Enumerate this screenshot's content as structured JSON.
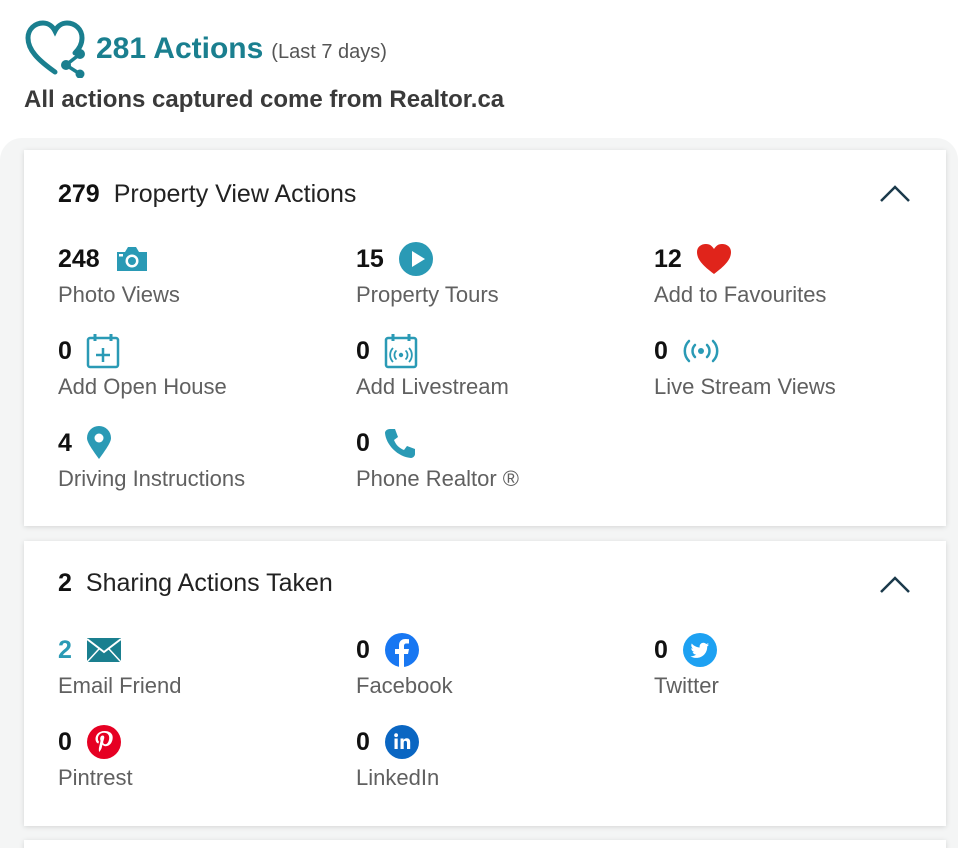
{
  "header": {
    "total_label": "281 Actions",
    "range_label": "(Last 7 days)",
    "subtitle": "All actions captured come from Realtor.ca"
  },
  "property_section": {
    "count": "279",
    "title": "Property View Actions",
    "stats": [
      {
        "value": "248",
        "label": "Photo Views",
        "icon": "camera-icon"
      },
      {
        "value": "15",
        "label": "Property Tours",
        "icon": "play-circle-icon"
      },
      {
        "value": "12",
        "label": "Add to Favourites",
        "icon": "heart-icon"
      },
      {
        "value": "0",
        "label": "Add Open House",
        "icon": "calendar-plus-icon"
      },
      {
        "value": "0",
        "label": "Add Livestream",
        "icon": "calendar-broadcast-icon"
      },
      {
        "value": "0",
        "label": "Live Stream Views",
        "icon": "broadcast-icon"
      },
      {
        "value": "4",
        "label": "Driving Instructions",
        "icon": "map-pin-icon"
      },
      {
        "value": "0",
        "label": "Phone Realtor ®",
        "icon": "phone-icon"
      }
    ]
  },
  "sharing_section": {
    "count": "2",
    "title": "Sharing Actions Taken",
    "stats": [
      {
        "value": "2",
        "label": "Email Friend",
        "icon": "envelope-icon"
      },
      {
        "value": "0",
        "label": "Facebook",
        "icon": "facebook-icon"
      },
      {
        "value": "0",
        "label": "Twitter",
        "icon": "twitter-icon"
      },
      {
        "value": "0",
        "label": "Pintrest",
        "icon": "pinterest-icon"
      },
      {
        "value": "0",
        "label": "LinkedIn",
        "icon": "linkedin-icon"
      }
    ]
  },
  "colors": {
    "accent": "#1a7f8f",
    "icon_blue": "#2a9ab5",
    "heart_red": "#e0241b",
    "facebook_blue": "#1877f2",
    "twitter_blue": "#1da1f2",
    "pinterest_red": "#e60023",
    "linkedin_blue": "#0a66c2"
  }
}
